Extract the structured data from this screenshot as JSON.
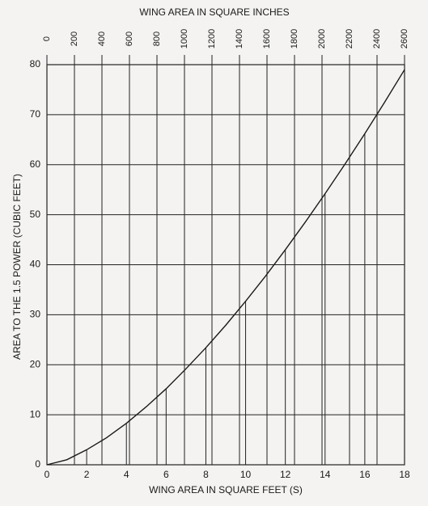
{
  "chart_data": {
    "type": "line",
    "title": "WING AREA IN SQUARE INCHES",
    "x_label": "WING AREA IN SQUARE FEET (S)",
    "y_label": "AREA TO THE 1.5 POWER (CUBIC FEET)",
    "x": [
      0,
      1,
      2,
      3,
      4,
      5,
      6,
      7,
      8,
      9,
      10,
      11,
      12,
      13,
      14,
      15,
      16,
      17,
      18
    ],
    "series": [
      {
        "color": "#1a1a1a",
        "values": [
          0,
          1,
          3,
          5.4,
          8.3,
          11.6,
          15.2,
          19.2,
          23.4,
          27.9,
          32.7,
          37.7,
          43,
          48.5,
          54.2,
          60.1,
          66.2,
          72.5,
          79
        ]
      }
    ],
    "xlim": [
      0,
      18
    ],
    "xticks": [
      0,
      2,
      4,
      6,
      8,
      10,
      12,
      14,
      16,
      18
    ],
    "x2lim": [
      0,
      2600
    ],
    "x2ticks": [
      0,
      200,
      400,
      600,
      800,
      1000,
      1200,
      1400,
      1600,
      1800,
      2000,
      2200,
      2400,
      2600
    ],
    "ylim": [
      0,
      80
    ],
    "yticks": [
      0,
      10,
      20,
      30,
      40,
      50,
      60,
      70,
      80
    ],
    "grid": true
  }
}
